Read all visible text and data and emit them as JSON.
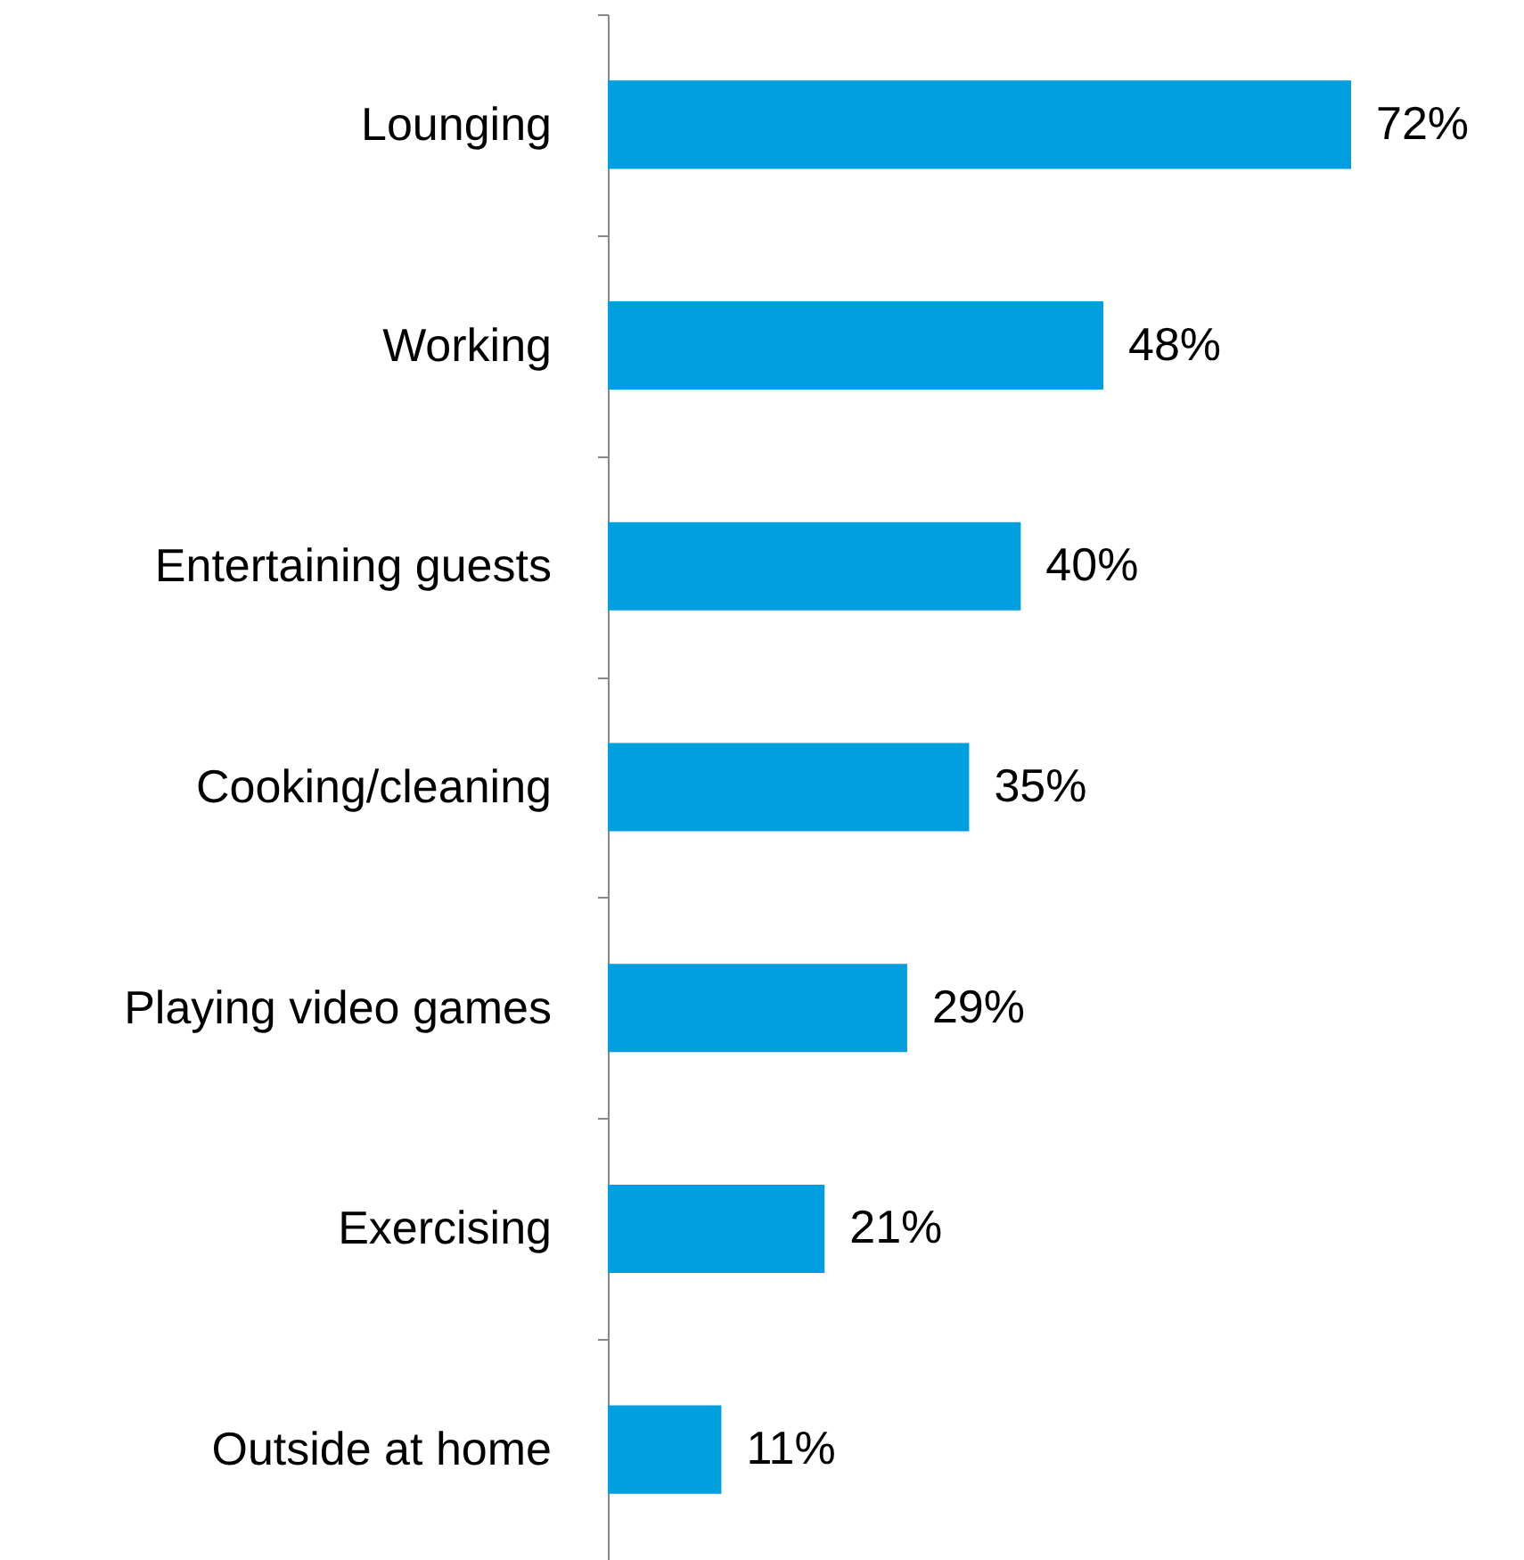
{
  "chart_data": {
    "type": "bar",
    "orientation": "horizontal",
    "categories": [
      "Lounging",
      "Working",
      "Entertaining guests",
      "Cooking/cleaning",
      "Playing video games",
      "Exercising",
      "Outside at home"
    ],
    "values": [
      72,
      48,
      40,
      35,
      29,
      21,
      11
    ],
    "value_labels": [
      "72%",
      "48%",
      "40%",
      "35%",
      "29%",
      "21%",
      "11%"
    ],
    "color": "#009fdf"
  }
}
